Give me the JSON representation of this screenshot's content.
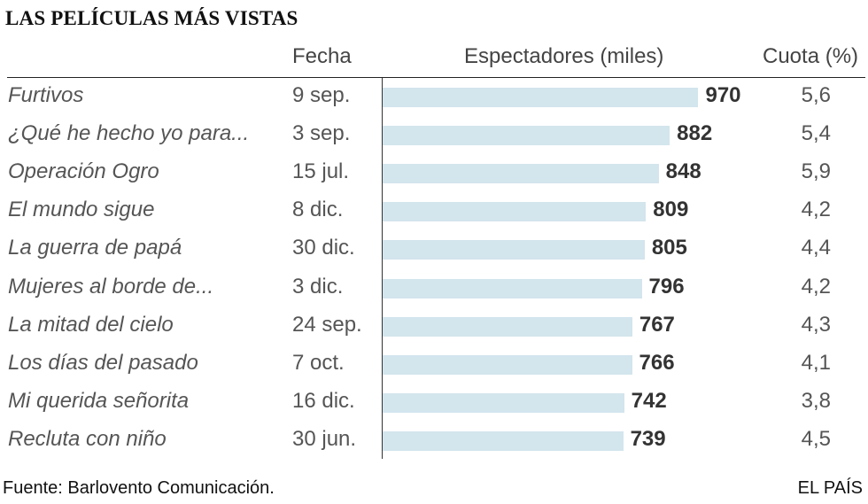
{
  "chart_data": {
    "type": "bar",
    "title": "LAS PELÍCULAS MÁS VISTAS",
    "columns": {
      "name": "",
      "date": "Fecha",
      "value": "Espectadores (miles)",
      "share": "Cuota (%)"
    },
    "categories": [
      "Furtivos",
      "¿Qué he hecho yo para...",
      "Operación Ogro",
      "El mundo sigue",
      "La guerra de papá",
      "Mujeres al borde de...",
      "La mitad del cielo",
      "Los días del pasado",
      "Mi querida señorita",
      "Recluta con niño"
    ],
    "dates": [
      "9 sep.",
      "3 sep.",
      "15 jul.",
      "8 dic.",
      "30 dic.",
      "3 dic.",
      "24 sep.",
      "7 oct.",
      "16 dic.",
      "30 jun."
    ],
    "values": [
      970,
      882,
      848,
      809,
      805,
      796,
      767,
      766,
      742,
      739
    ],
    "shares": [
      "5,6",
      "5,4",
      "5,9",
      "4,2",
      "4,4",
      "4,2",
      "4,3",
      "4,1",
      "3,8",
      "4,5"
    ],
    "bar_color": "#d3e5ed"
  },
  "footer": {
    "source": "Fuente: Barlovento Comunicación.",
    "brand": "EL PAÍS"
  }
}
